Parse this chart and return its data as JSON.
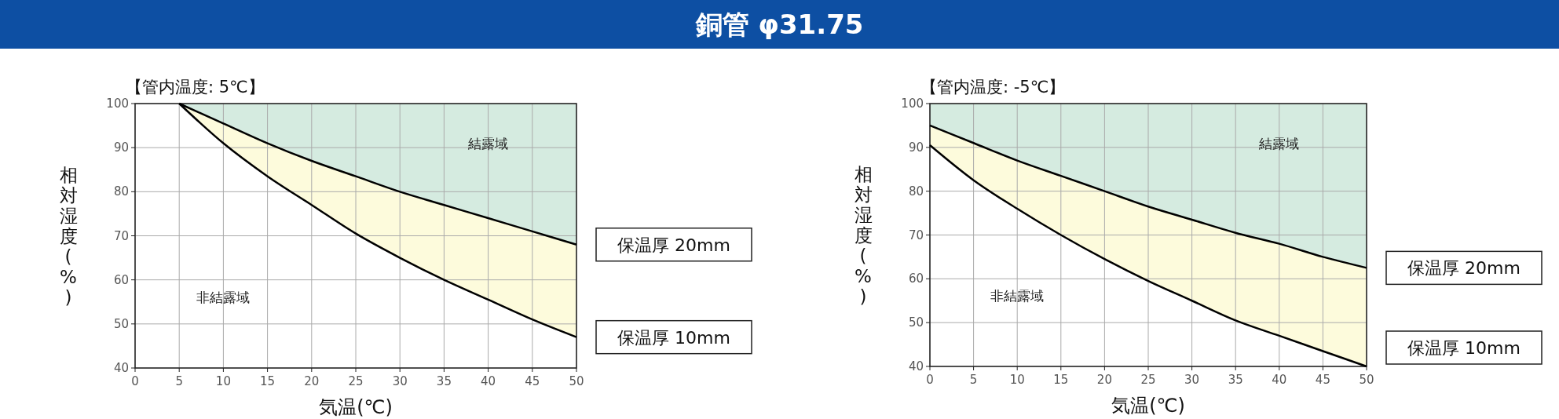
{
  "chart_data": [
    {
      "type": "line",
      "subtitle": "【管内温度: 5℃】",
      "xlabel": "気温(℃)",
      "ylabel": "相対湿度(%)",
      "x": [
        5,
        10,
        15,
        20,
        25,
        30,
        35,
        40,
        45,
        50
      ],
      "xlim": [
        0,
        50
      ],
      "xticks": [
        0,
        5,
        10,
        15,
        20,
        25,
        30,
        35,
        40,
        45,
        50
      ],
      "ylim": [
        40,
        100
      ],
      "yticks": [
        40,
        50,
        60,
        70,
        80,
        90,
        100
      ],
      "grid": true,
      "series": [
        {
          "name": "保温厚 20mm",
          "color": "#000000",
          "values": [
            100,
            95.5,
            91,
            87,
            83.5,
            80,
            77,
            74,
            71,
            68
          ],
          "lower": [
            100,
            95.5,
            91,
            87,
            83.5,
            80,
            77,
            74,
            71,
            68
          ],
          "upper": [
            100,
            100,
            100,
            100,
            100,
            100,
            100,
            100,
            100,
            100
          ]
        },
        {
          "name": "保温厚 10mm",
          "color": "#000000",
          "values": [
            100,
            91,
            83.5,
            77,
            70.5,
            65,
            60,
            55.5,
            51,
            47
          ],
          "lower": [
            100,
            91,
            83.5,
            77,
            70.5,
            65,
            60,
            55.5,
            51,
            47
          ],
          "upper": [
            100,
            95.5,
            91,
            87,
            83.5,
            80,
            77,
            74,
            71,
            68
          ]
        }
      ],
      "annotations": [
        "結露域",
        "非結露域"
      ]
    },
    {
      "type": "line",
      "title": "銅管 φ31.75",
      "subtitle": "【管内温度: -5℃】",
      "xlabel": "気温(℃)",
      "ylabel": "相対湿度(%)",
      "x": [
        0,
        5,
        10,
        15,
        20,
        25,
        30,
        35,
        40,
        45,
        50
      ],
      "xlim": [
        0,
        50
      ],
      "xticks": [
        0,
        5,
        10,
        15,
        20,
        25,
        30,
        35,
        40,
        45,
        50
      ],
      "ylim": [
        40,
        100
      ],
      "yticks": [
        40,
        50,
        60,
        70,
        80,
        90,
        100
      ],
      "grid": true,
      "series": [
        {
          "name": "保温厚 20mm",
          "color": "#000000",
          "values": [
            95,
            91,
            87,
            83.5,
            80,
            76.5,
            73.5,
            70.5,
            68,
            65,
            62.5
          ],
          "lower": [
            95,
            91,
            87,
            83.5,
            80,
            76.5,
            73.5,
            70.5,
            68,
            65,
            62.5
          ],
          "upper": [
            100,
            100,
            100,
            100,
            100,
            100,
            100,
            100,
            100,
            100,
            100
          ]
        },
        {
          "name": "保温厚 10mm",
          "color": "#000000",
          "values": [
            90.5,
            82.5,
            76,
            70,
            64.5,
            59.5,
            55,
            50.5,
            47,
            43.5,
            40
          ],
          "lower": [
            90.5,
            82.5,
            76,
            70,
            64.5,
            59.5,
            55,
            50.5,
            47,
            43.5,
            40
          ],
          "upper": [
            95,
            91,
            87,
            83.5,
            80,
            76.5,
            73.5,
            70.5,
            68,
            65,
            62.5
          ]
        }
      ],
      "annotations": [
        "結露域",
        "非結露域"
      ]
    }
  ]
}
